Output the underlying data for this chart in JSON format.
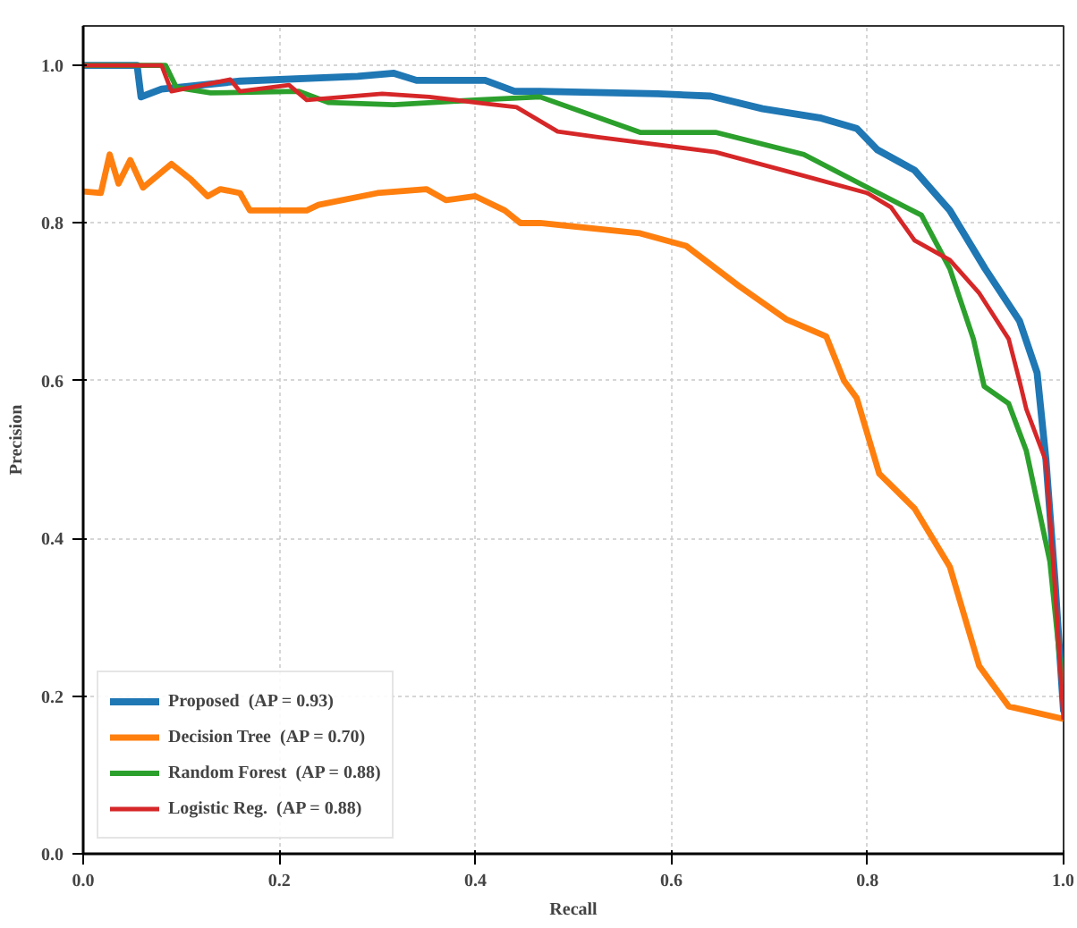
{
  "chart_data": {
    "type": "line",
    "xlabel": "Recall",
    "ylabel": "Precision",
    "xlim": [
      0,
      1.0
    ],
    "ylim": [
      0,
      1.05
    ],
    "xticks": [
      {
        "value": 0,
        "label": "0.0"
      },
      0.2,
      0.4,
      0.6,
      0.8,
      {
        "value": 1.0,
        "label": "1.0"
      }
    ],
    "yticks": [
      {
        "value": 0,
        "label": "0.0"
      },
      0.2,
      0.4,
      0.6,
      0.8,
      {
        "value": 1.0,
        "label": "1.0"
      }
    ],
    "grid": true,
    "legend": "bottom left",
    "line_style": "solid",
    "marker": "none",
    "series": [
      {
        "name": "Proposed  (AP = 0.93)",
        "color": "#1f77b4",
        "x": [
          0,
          0.055,
          0.059,
          0.08,
          0.16,
          0.28,
          0.317,
          0.34,
          0.41,
          0.44,
          0.466,
          0.586,
          0.64,
          0.693,
          0.753,
          0.789,
          0.81,
          0.848,
          0.884,
          0.92,
          0.955,
          0.973,
          0.982,
          0.991,
          1.0
        ],
        "values": [
          1.0,
          1.0,
          0.96,
          0.97,
          0.98,
          0.986,
          0.99,
          0.981,
          0.981,
          0.967,
          0.967,
          0.964,
          0.961,
          0.945,
          0.933,
          0.92,
          0.893,
          0.867,
          0.816,
          0.742,
          0.676,
          0.61,
          0.5,
          0.35,
          0.18
        ]
      },
      {
        "name": "Decision Tree  (AP = 0.70)",
        "color": "#ff7f0e",
        "x": [
          0,
          0.018,
          0.027,
          0.036,
          0.048,
          0.061,
          0.09,
          0.11,
          0.127,
          0.14,
          0.16,
          0.17,
          0.228,
          0.24,
          0.3,
          0.35,
          0.37,
          0.4,
          0.43,
          0.446,
          0.466,
          0.568,
          0.615,
          0.669,
          0.717,
          0.758,
          0.776,
          0.789,
          0.812,
          0.848,
          0.884,
          0.914,
          0.944,
          1.0
        ],
        "values": [
          0.84,
          0.838,
          0.887,
          0.85,
          0.88,
          0.845,
          0.875,
          0.855,
          0.834,
          0.843,
          0.838,
          0.816,
          0.816,
          0.823,
          0.838,
          0.843,
          0.829,
          0.834,
          0.816,
          0.8,
          0.8,
          0.787,
          0.771,
          0.72,
          0.678,
          0.656,
          0.6,
          0.578,
          0.482,
          0.438,
          0.364,
          0.238,
          0.187,
          0.171
        ]
      },
      {
        "name": "Random Forest  (AP = 0.88)",
        "color": "#2ca02c",
        "x": [
          0,
          0.084,
          0.095,
          0.13,
          0.22,
          0.25,
          0.317,
          0.4,
          0.466,
          0.568,
          0.645,
          0.735,
          0.8,
          0.855,
          0.884,
          0.908,
          0.919,
          0.944,
          0.962,
          0.986,
          1.0
        ],
        "values": [
          1.0,
          1.0,
          0.972,
          0.965,
          0.967,
          0.953,
          0.95,
          0.956,
          0.96,
          0.915,
          0.915,
          0.887,
          0.845,
          0.81,
          0.742,
          0.653,
          0.593,
          0.571,
          0.511,
          0.371,
          0.2
        ]
      },
      {
        "name": "Logistic Reg.  (AP = 0.88)",
        "color": "#d62728",
        "x": [
          0,
          0.08,
          0.09,
          0.15,
          0.16,
          0.21,
          0.228,
          0.305,
          0.353,
          0.4,
          0.442,
          0.484,
          0.525,
          0.645,
          0.735,
          0.8,
          0.824,
          0.848,
          0.884,
          0.914,
          0.944,
          0.955,
          0.962,
          0.982,
          0.991,
          1.0
        ],
        "values": [
          1.0,
          1.0,
          0.967,
          0.982,
          0.967,
          0.975,
          0.956,
          0.964,
          0.96,
          0.953,
          0.947,
          0.916,
          0.909,
          0.89,
          0.86,
          0.838,
          0.82,
          0.778,
          0.753,
          0.711,
          0.653,
          0.6,
          0.564,
          0.498,
          0.342,
          0.17
        ]
      }
    ]
  }
}
